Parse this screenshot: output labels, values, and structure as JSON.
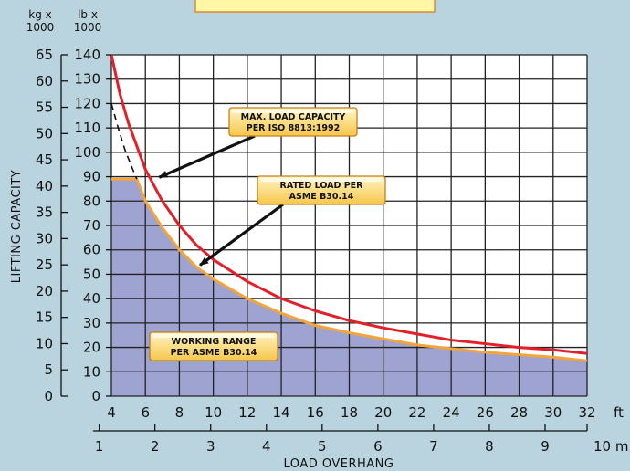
{
  "chart_data": {
    "type": "area",
    "xlabel": "LOAD OVERHANG",
    "ylabel": "LIFTING CAPACITY",
    "x_unit_ft": "ft",
    "x_unit_m": "10 m",
    "y_unit_kg": [
      "kg x",
      "1000"
    ],
    "y_unit_lb": [
      "lb x",
      "1000"
    ],
    "x_ft_ticks": [
      "4",
      "6",
      "8",
      "10",
      "12",
      "14",
      "16",
      "18",
      "20",
      "22",
      "24",
      "26",
      "28",
      "30",
      "32"
    ],
    "x_m_ticks": [
      "1",
      "2",
      "3",
      "4",
      "5",
      "6",
      "7",
      "8",
      "9"
    ],
    "y_lb_ticks": [
      "0",
      "10",
      "20",
      "30",
      "40",
      "50",
      "60",
      "70",
      "80",
      "90",
      "100",
      "110",
      "120",
      "130",
      "140"
    ],
    "y_kg_ticks": [
      "0",
      "5",
      "10",
      "15",
      "20",
      "25",
      "30",
      "35",
      "40",
      "45",
      "50",
      "55",
      "60",
      "65"
    ],
    "xlim_ft": [
      4,
      32
    ],
    "ylim_lb": [
      0,
      140
    ],
    "grid": true,
    "series": [
      {
        "name": "MAX. LOAD CAPACITY PER ISO 8813:1992",
        "style": "line",
        "color": "#e3202a",
        "x": [
          4,
          4.5,
          5,
          6,
          7,
          8,
          9,
          10,
          12,
          14,
          16,
          18,
          20,
          22,
          24,
          26,
          28,
          30,
          32
        ],
        "y": [
          140,
          124,
          112,
          93,
          80,
          70,
          62,
          56,
          47,
          40,
          35,
          31,
          28,
          25.5,
          23,
          21.5,
          20,
          19,
          17.5
        ]
      },
      {
        "name": "RATED LOAD PER ASME B30.14",
        "style": "line",
        "color": "#f4a53a",
        "x": [
          4,
          5.5,
          6,
          7,
          8,
          9,
          10,
          12,
          14,
          16,
          18,
          20,
          22,
          24,
          26,
          28,
          30,
          32
        ],
        "y": [
          89,
          89,
          80,
          69,
          60,
          53,
          48,
          40,
          34,
          29,
          26,
          23.5,
          21,
          19.5,
          18,
          17,
          16,
          14.5
        ]
      },
      {
        "name": "dashed",
        "style": "dashed",
        "color": "#111111",
        "x": [
          4,
          4.4,
          4.8,
          5.2,
          5.5
        ],
        "y": [
          120,
          110,
          101,
          94,
          89
        ]
      }
    ],
    "annotations": [
      {
        "lines": [
          "MAX. LOAD CAPACITY",
          "PER ISO 8813:1992"
        ],
        "arrow_to": [
          6.6,
          89
        ]
      },
      {
        "lines": [
          "RATED LOAD PER",
          "ASME B30.14"
        ],
        "arrow_to": [
          9,
          53
        ]
      },
      {
        "lines": [
          "WORKING RANGE",
          "PER ASME B30.14"
        ]
      }
    ]
  }
}
